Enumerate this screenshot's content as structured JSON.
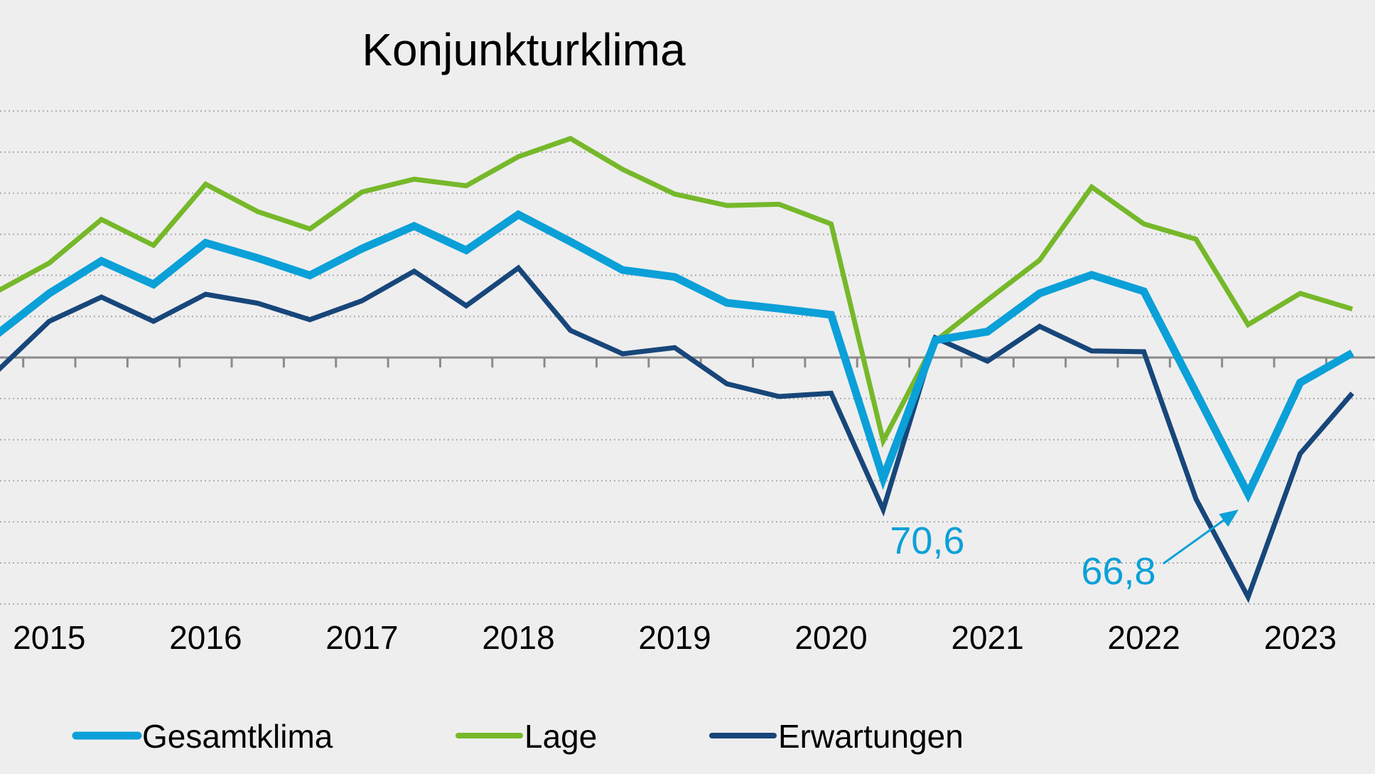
{
  "chart_data": {
    "type": "line",
    "title": "Konjunkturklima",
    "xlabel": "",
    "ylabel": "",
    "ylim": [
      40,
      160
    ],
    "y_gridlines": [
      40,
      50,
      60,
      70,
      80,
      90,
      110,
      120,
      130,
      140,
      150,
      160
    ],
    "baseline": 100,
    "grid": true,
    "y_tick_labels_shown": false,
    "legend_position": "bottom",
    "x": [
      "2014-3",
      "2015-1",
      "2015-2",
      "2015-3",
      "2016-1",
      "2016-2",
      "2016-3",
      "2017-1",
      "2017-2",
      "2017-3",
      "2018-1",
      "2018-2",
      "2018-3",
      "2019-1",
      "2019-2",
      "2019-3",
      "2020-1",
      "2020-2",
      "2020-3",
      "2021-1",
      "2021-2",
      "2021-3",
      "2022-1",
      "2022-2",
      "2022-3",
      "2023-1",
      "2023-2"
    ],
    "x_tick_labels": [
      {
        "index": 1,
        "label": "2015"
      },
      {
        "index": 4,
        "label": "2016"
      },
      {
        "index": 7,
        "label": "2017"
      },
      {
        "index": 10,
        "label": "2018"
      },
      {
        "index": 13,
        "label": "2019"
      },
      {
        "index": 16,
        "label": "2020"
      },
      {
        "index": 19,
        "label": "2021"
      },
      {
        "index": 22,
        "label": "2022"
      },
      {
        "index": 25,
        "label": "2023"
      }
    ],
    "series": [
      {
        "name": "Gesamtklima",
        "color": "#0ba0d8",
        "values": [
          105.7,
          115.6,
          123.5,
          117.8,
          127.9,
          124.2,
          120.0,
          126.5,
          132.0,
          126.1,
          134.8,
          128.2,
          121.3,
          119.6,
          113.3,
          111.9,
          110.4,
          70.6,
          104.2,
          106.3,
          115.6,
          120.1,
          116.1,
          91.5,
          66.8,
          93.9,
          101.1
        ]
      },
      {
        "name": "Lage",
        "color": "#76b82a",
        "values": [
          116.1,
          123.0,
          133.6,
          127.3,
          142.2,
          135.5,
          131.3,
          140.3,
          143.4,
          141.8,
          148.9,
          153.3,
          145.8,
          139.8,
          137.0,
          137.3,
          132.5,
          79.7,
          104.0,
          114.0,
          123.7,
          141.5,
          132.5,
          128.8,
          108.0,
          115.6,
          111.8
        ]
      },
      {
        "name": "Erwartungen",
        "color": "#17467a",
        "values": [
          96.7,
          108.8,
          114.7,
          108.8,
          115.4,
          113.2,
          109.2,
          113.8,
          121.0,
          112.6,
          121.8,
          106.6,
          100.9,
          102.4,
          93.6,
          90.5,
          91.3,
          63.0,
          104.8,
          99.1,
          107.6,
          101.6,
          101.4,
          65.6,
          41.7,
          76.6,
          91.3
        ]
      }
    ],
    "annotations": [
      {
        "label": "70,6",
        "series": "Gesamtklima",
        "index": 17,
        "value": 70.6,
        "color": "#0ba0d8",
        "arrow": false
      },
      {
        "label": "66,8",
        "series": "Gesamtklima",
        "index": 24,
        "value": 66.8,
        "color": "#0ba0d8",
        "arrow": true
      }
    ]
  }
}
